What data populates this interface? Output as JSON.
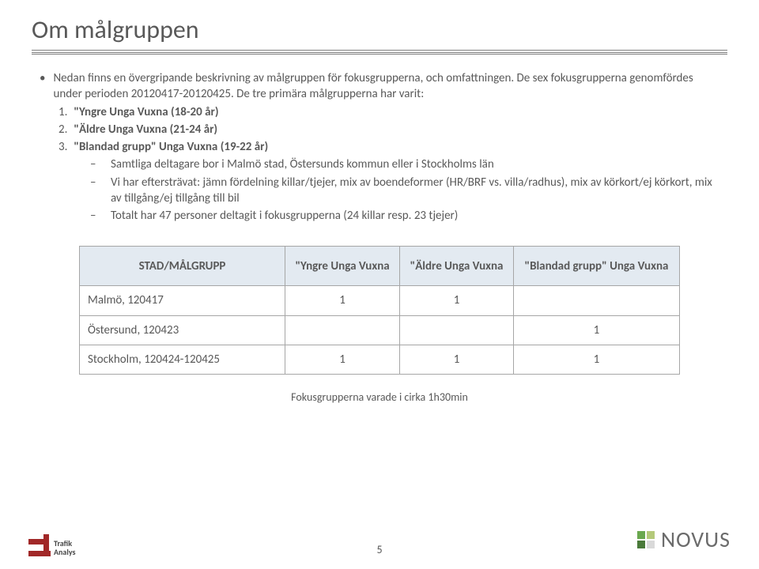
{
  "title": "Om målgruppen",
  "intro": "Nedan finns en övergripande beskrivning av målgruppen för fokusgrupperna, och omfattningen. De sex fokusgrupperna genomfördes  under perioden 20120417-20120425. De tre primära målgrupperna har varit:",
  "numbered": {
    "n1": "1.",
    "n2": "2.",
    "n3": "3.",
    "t1": "\"Yngre Unga Vuxna (18-20 år)",
    "t2": "\"Äldre Unga Vuxna (21-24 år)",
    "t3": "\"Blandad grupp\" Unga Vuxna (19-22 år)"
  },
  "dashes": {
    "d1": "Samtliga deltagare bor i Malmö stad, Östersunds kommun eller i Stockholms län",
    "d2": "Vi har eftersträvat: jämn fördelning killar/tjejer, mix av boendeformer (HR/BRF vs. villa/radhus), mix av körkort/ej körkort, mix av tillgång/ej tillgång till bil",
    "d3": "Totalt har 47 personer deltagit i fokusgrupperna (24 killar resp. 23 tjejer)"
  },
  "table": {
    "headers": {
      "c0": "STAD/MÅLGRUPP",
      "c1": "\"Yngre Unga Vuxna",
      "c2": "\"Äldre Unga Vuxna",
      "c3": "\"Blandad grupp\" Unga Vuxna"
    },
    "rows": {
      "r0": {
        "label": "Malmö, 120417",
        "v1": "1",
        "v2": "1",
        "v3": ""
      },
      "r1": {
        "label": "Östersund, 120423",
        "v1": "",
        "v2": "",
        "v3": "1"
      },
      "r2": {
        "label": "Stockholm, 120424-120425",
        "v1": "1",
        "v2": "1",
        "v3": "1"
      }
    },
    "colors": {
      "header_bg": "#e3eaf1",
      "border": "#a6a6a6"
    }
  },
  "caption": "Fokusgrupperna varade i cirka 1h30min",
  "page_number": "5",
  "logos": {
    "left_name": "Trafik Analys",
    "left_line1": "Trafik",
    "left_line2": "Analys",
    "left_color": "#a12828",
    "right_name": "NOVUS",
    "right_colors": {
      "a": "#6aa84f",
      "b": "#b4c97a",
      "c": "#4a7a3a",
      "d": "#d9d9d9"
    }
  }
}
